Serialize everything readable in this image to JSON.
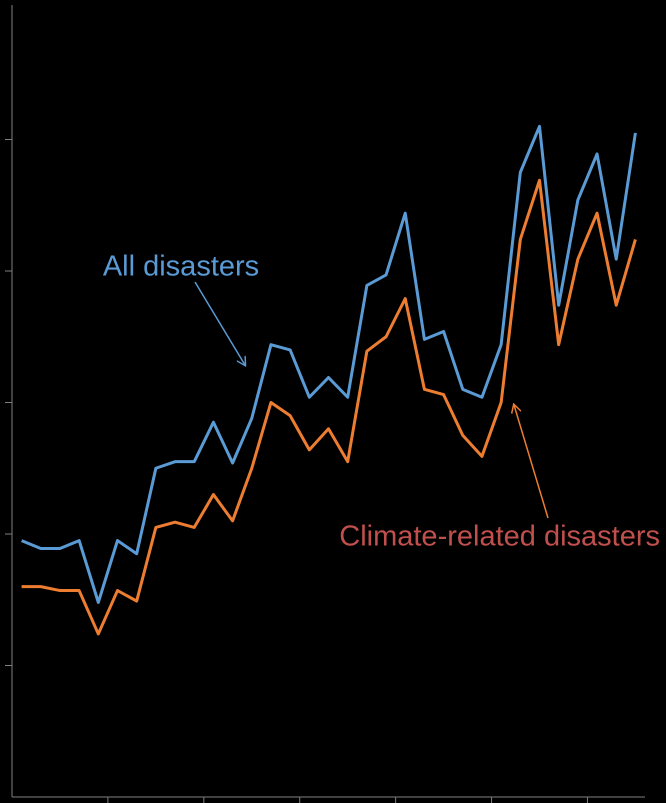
{
  "chart_data": {
    "type": "line",
    "x": [
      0,
      1,
      2,
      3,
      4,
      5,
      6,
      7,
      8,
      9,
      10,
      11,
      12,
      13,
      14,
      15,
      16,
      17,
      18,
      19,
      20,
      21,
      22,
      23,
      24,
      25,
      26,
      27,
      28,
      29,
      30,
      31,
      32
    ],
    "xlim": [
      -0.5,
      32.5
    ],
    "xticks": [
      4.5,
      9.5,
      14.5,
      19.5,
      24.5,
      29.5
    ],
    "ylim": [
      0,
      6
    ],
    "yticks": [
      1,
      2,
      3,
      4,
      5
    ],
    "series": [
      {
        "name": "All disasters",
        "color": "#5b9bd5",
        "values": [
          1.95,
          1.89,
          1.89,
          1.95,
          1.48,
          1.95,
          1.85,
          2.5,
          2.55,
          2.55,
          2.85,
          2.54,
          2.88,
          3.44,
          3.4,
          3.04,
          3.19,
          3.04,
          3.89,
          3.97,
          4.44,
          3.48,
          3.54,
          3.1,
          3.04,
          3.44,
          4.75,
          5.1,
          3.74,
          4.54,
          4.89,
          4.09,
          5.05
        ]
      },
      {
        "name": "Climate-related disasters",
        "color": "#ed7d31",
        "label_color": "#c0504d",
        "values": [
          1.6,
          1.6,
          1.57,
          1.57,
          1.24,
          1.57,
          1.49,
          2.05,
          2.09,
          2.05,
          2.3,
          2.1,
          2.5,
          3.0,
          2.9,
          2.64,
          2.8,
          2.55,
          3.39,
          3.5,
          3.79,
          3.1,
          3.06,
          2.75,
          2.59,
          3.0,
          4.24,
          4.69,
          3.44,
          4.09,
          4.44,
          3.74,
          4.24
        ]
      }
    ]
  }
}
